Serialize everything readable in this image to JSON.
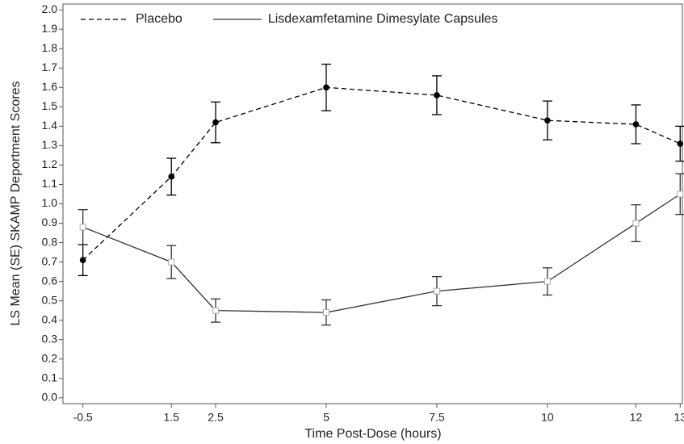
{
  "chart_data": {
    "type": "line",
    "xlabel": "Time Post-Dose (hours)",
    "ylabel": "LS Mean (SE) SKAMP Deportment Scores",
    "x": [
      -0.5,
      1.5,
      2.5,
      5,
      7.5,
      10,
      12,
      13
    ],
    "series": [
      {
        "name": "Placebo",
        "color": "#000000",
        "line_style": "dashed",
        "marker": "filled-circle",
        "values": [
          0.71,
          1.14,
          1.42,
          1.6,
          1.56,
          1.43,
          1.41,
          1.31
        ],
        "errors": [
          0.08,
          0.095,
          0.105,
          0.12,
          0.1,
          0.1,
          0.1,
          0.09
        ]
      },
      {
        "name": "Lisdexamfetamine Dimesylate Capsules",
        "color": "#333333",
        "line_style": "solid",
        "marker": "open-square",
        "values": [
          0.88,
          0.7,
          0.45,
          0.44,
          0.55,
          0.6,
          0.9,
          1.05
        ],
        "errors": [
          0.09,
          0.085,
          0.06,
          0.065,
          0.075,
          0.07,
          0.095,
          0.105
        ]
      }
    ],
    "xlim": [
      -0.95,
      13.05
    ],
    "xticks": [
      -0.5,
      1.5,
      2.5,
      5,
      7.5,
      10,
      12,
      13
    ],
    "ylim": [
      -0.03,
      2.03
    ],
    "yticks": [
      {
        "value": 0,
        "label": "0.0"
      },
      0.1,
      0.2,
      0.3,
      0.4,
      0.5,
      0.6,
      0.7,
      0.8,
      0.9,
      {
        "value": 1,
        "label": "1.0"
      },
      1.1,
      1.2,
      1.3,
      1.4,
      1.5,
      1.6,
      1.7,
      1.8,
      1.9,
      {
        "value": 2,
        "label": "2.0"
      }
    ],
    "legend": "upper-left",
    "grid": false
  }
}
